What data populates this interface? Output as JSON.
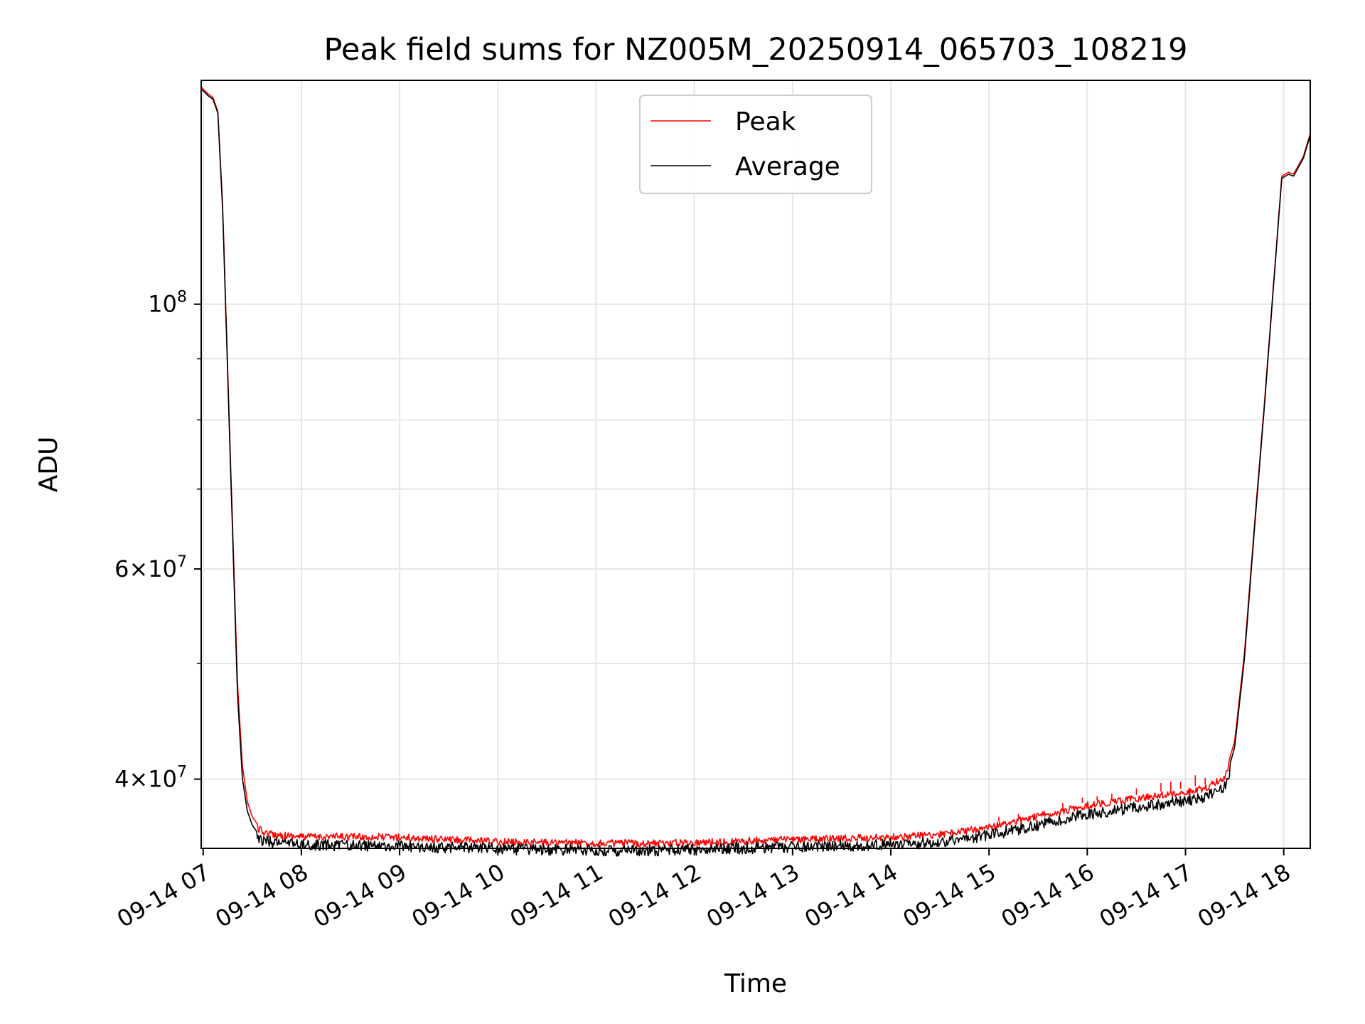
{
  "chart_data": {
    "type": "line",
    "title": "Peak field sums for NZ005M_20250914_065703_108219",
    "xlabel": "Time",
    "ylabel": "ADU",
    "y_scale": "log",
    "ylim": [
      35000000,
      154000000
    ],
    "xlim": [
      "09-14 06:59",
      "09-14 18:16"
    ],
    "grid": true,
    "legend_location": "top-center",
    "x_tick_labels": [
      "09-14 07",
      "09-14 08",
      "09-14 09",
      "09-14 10",
      "09-14 11",
      "09-14 12",
      "09-14 13",
      "09-14 14",
      "09-14 15",
      "09-14 16",
      "09-14 17",
      "09-14 18"
    ],
    "x_tick_hours": [
      7,
      8,
      9,
      10,
      11,
      12,
      13,
      14,
      15,
      16,
      17,
      18
    ],
    "y_major_ticks": [
      {
        "value": 100000000,
        "base": "10",
        "exp": "8"
      },
      {
        "value": 60000000,
        "base": "6×10",
        "exp": "7"
      },
      {
        "value": 40000000,
        "base": "4×10",
        "exp": "7"
      }
    ],
    "y_minor_ticks": [
      30000000,
      50000000,
      70000000,
      80000000,
      90000000
    ],
    "series": [
      {
        "name": "Peak",
        "color": "#ff0000",
        "x_hours": [
          6.98,
          7.05,
          7.1,
          7.15,
          7.2,
          7.25,
          7.3,
          7.35,
          7.4,
          7.45,
          7.5,
          7.55,
          7.6,
          7.7,
          7.8,
          7.9,
          8.0,
          8.5,
          9.0,
          10.0,
          11.0,
          11.5,
          12.0,
          12.5,
          13.0,
          14.0,
          14.5,
          15.0,
          15.5,
          16.0,
          16.5,
          17.0,
          17.2,
          17.4,
          17.5,
          17.6,
          17.7,
          17.8,
          17.9,
          17.98,
          18.05,
          18.1,
          18.2,
          18.27
        ],
        "values": [
          152000000,
          150000000,
          149000000,
          145000000,
          120000000,
          88000000,
          65000000,
          48000000,
          41000000,
          38300000,
          37200000,
          36700000,
          36400000,
          36200000,
          36150000,
          36100000,
          36050000,
          36050000,
          36000000,
          35700000,
          35600000,
          35600000,
          35650000,
          35750000,
          35850000,
          36000000,
          36200000,
          36700000,
          37500000,
          38300000,
          38800000,
          39300000,
          39600000,
          40400000,
          43000000,
          51000000,
          65000000,
          82000000,
          105000000,
          128000000,
          129000000,
          128500000,
          133000000,
          139000000
        ],
        "spikes": [
          {
            "x_hours": 15.1,
            "value": 37200000
          },
          {
            "x_hours": 15.3,
            "value": 37400000
          },
          {
            "x_hours": 15.75,
            "value": 38200000
          },
          {
            "x_hours": 15.95,
            "value": 38600000
          },
          {
            "x_hours": 16.1,
            "value": 38700000
          },
          {
            "x_hours": 16.25,
            "value": 38900000
          },
          {
            "x_hours": 16.5,
            "value": 39300000
          },
          {
            "x_hours": 16.75,
            "value": 39700000
          },
          {
            "x_hours": 16.85,
            "value": 39800000
          },
          {
            "x_hours": 16.95,
            "value": 39800000
          },
          {
            "x_hours": 17.1,
            "value": 40300000
          },
          {
            "x_hours": 17.2,
            "value": 40100000
          }
        ]
      },
      {
        "name": "Average",
        "color": "#000000",
        "x_hours": [
          6.98,
          7.05,
          7.1,
          7.15,
          7.2,
          7.25,
          7.3,
          7.35,
          7.4,
          7.45,
          7.5,
          7.55,
          7.6,
          7.7,
          7.8,
          7.9,
          8.0,
          8.5,
          9.0,
          10.0,
          11.0,
          11.5,
          12.0,
          12.5,
          13.0,
          14.0,
          14.5,
          15.0,
          15.5,
          16.0,
          16.5,
          17.0,
          17.2,
          17.4,
          17.5,
          17.6,
          17.7,
          17.8,
          17.9,
          17.98,
          18.05,
          18.1,
          18.2,
          18.27
        ],
        "values": [
          151500000,
          149500000,
          148500000,
          144500000,
          119000000,
          87000000,
          64000000,
          47000000,
          40000000,
          37600000,
          36600000,
          36100000,
          35900000,
          35800000,
          35750000,
          35700000,
          35650000,
          35600000,
          35550000,
          35350000,
          35250000,
          35250000,
          35300000,
          35400000,
          35500000,
          35650000,
          35800000,
          36300000,
          37000000,
          37800000,
          38300000,
          38800000,
          39100000,
          39800000,
          42500000,
          50500000,
          64500000,
          81500000,
          104500000,
          127500000,
          128500000,
          128000000,
          132500000,
          138500000
        ]
      }
    ]
  }
}
